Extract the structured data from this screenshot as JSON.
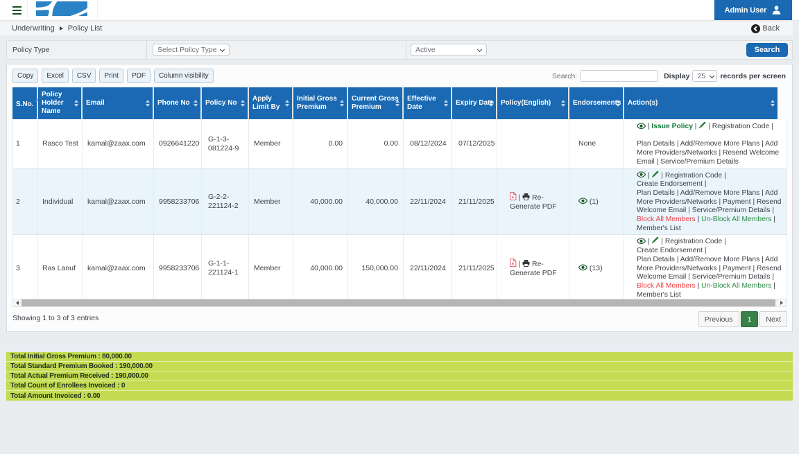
{
  "navbar": {
    "user_label": "Admin User"
  },
  "breadcrumb": {
    "section": "Underwriting",
    "page": "Policy List",
    "back_label": "Back"
  },
  "filter": {
    "policy_type_label": "Policy Type",
    "policy_type_value": "Select Policy Type",
    "status_value": "Active",
    "search_button_label": "Search"
  },
  "toolbar": {
    "buttons": [
      "Copy",
      "Excel",
      "CSV",
      "Print",
      "PDF",
      "Column visibility"
    ],
    "search_label": "Search:",
    "search_value": "",
    "display_label": "Display",
    "page_size": "25",
    "records_label": "records per screen"
  },
  "table": {
    "columns": [
      "S.No.",
      "Policy Holder Name",
      "Email",
      "Phone No",
      "Policy No",
      "Apply Limit By",
      "Initial Gross Premium",
      "Current Gross Premium",
      "Effective Date",
      "Expiry Date",
      "Policy(English)",
      "Endorsements",
      "Action(s)"
    ],
    "sorted_column": "S.No.",
    "sort_direction": "asc",
    "rows": [
      {
        "sno": "1",
        "holder": "Rasco Test",
        "email": "kamal@zaax.com",
        "phone": "0926641220",
        "policy_no": "G-1-3-081224-9",
        "apply_limit": "Member",
        "initial_gross": "0.00",
        "current_gross": "0.00",
        "effective": "08/12/2024",
        "expiry": "07/12/2025",
        "policy_english": [],
        "endorsements": [
          {
            "type": "text",
            "text": "None"
          }
        ],
        "actions": [
          {
            "type": "icon",
            "name": "eye-icon"
          },
          {
            "type": "sep"
          },
          {
            "type": "link",
            "text": "Issue Policy",
            "style": "green-bold"
          },
          {
            "type": "sep"
          },
          {
            "type": "icon",
            "name": "pencil-icon"
          },
          {
            "type": "sep"
          },
          {
            "type": "link",
            "text": "Registration Code"
          },
          {
            "type": "sep"
          },
          {
            "type": "br"
          },
          {
            "type": "br"
          },
          {
            "type": "link",
            "text": "Plan Details"
          },
          {
            "type": "sep"
          },
          {
            "type": "link",
            "text": "Add/Remove More Plans"
          },
          {
            "type": "sep"
          },
          {
            "type": "link",
            "text": "Add More Providers/Networks"
          },
          {
            "type": "sep"
          },
          {
            "type": "link",
            "text": "Resend Welcome Email"
          },
          {
            "type": "sep"
          },
          {
            "type": "link",
            "text": "Service/Premium Details"
          }
        ]
      },
      {
        "sno": "2",
        "holder": "Individual",
        "email": "kamal@zaax.com",
        "phone": "9958233706",
        "policy_no": "G-2-2-221124-2",
        "apply_limit": "Member",
        "initial_gross": "40,000.00",
        "current_gross": "40,000.00",
        "effective": "22/11/2024",
        "expiry": "21/11/2025",
        "policy_english": [
          {
            "type": "icon",
            "name": "pdf-icon"
          },
          {
            "type": "sep"
          },
          {
            "type": "icon",
            "name": "printer-icon"
          },
          {
            "type": "text",
            "text": " "
          },
          {
            "type": "link",
            "text": "Re-Generate PDF"
          }
        ],
        "endorsements": [
          {
            "type": "icon",
            "name": "eye-icon"
          },
          {
            "type": "text",
            "text": " (1)"
          }
        ],
        "actions": [
          {
            "type": "icon",
            "name": "eye-icon"
          },
          {
            "type": "sep"
          },
          {
            "type": "icon",
            "name": "pencil-icon"
          },
          {
            "type": "sep"
          },
          {
            "type": "link",
            "text": "Registration Code"
          },
          {
            "type": "sep"
          },
          {
            "type": "br"
          },
          {
            "type": "link",
            "text": "Create Endorsement"
          },
          {
            "type": "sep"
          },
          {
            "type": "br"
          },
          {
            "type": "link",
            "text": "Plan Details"
          },
          {
            "type": "sep"
          },
          {
            "type": "link",
            "text": "Add/Remove More Plans"
          },
          {
            "type": "sep"
          },
          {
            "type": "link",
            "text": "Add More Providers/Networks"
          },
          {
            "type": "sep"
          },
          {
            "type": "link",
            "text": "Payment"
          },
          {
            "type": "sep"
          },
          {
            "type": "link",
            "text": "Resend Welcome Email"
          },
          {
            "type": "sep"
          },
          {
            "type": "link",
            "text": "Service/Premium Details"
          },
          {
            "type": "sep"
          },
          {
            "type": "link",
            "text": "Block All Members",
            "style": "red"
          },
          {
            "type": "sep"
          },
          {
            "type": "link",
            "text": "Un-Block All Members",
            "style": "green"
          },
          {
            "type": "sep"
          },
          {
            "type": "link",
            "text": "Member's List"
          }
        ]
      },
      {
        "sno": "3",
        "holder": "Ras Lanuf",
        "email": "kamal@zaax.com",
        "phone": "9958233706",
        "policy_no": "G-1-1-221124-1",
        "apply_limit": "Member",
        "initial_gross": "40,000.00",
        "current_gross": "150,000.00",
        "effective": "22/11/2024",
        "expiry": "21/11/2025",
        "policy_english": [
          {
            "type": "icon",
            "name": "pdf-icon"
          },
          {
            "type": "sep"
          },
          {
            "type": "icon",
            "name": "printer-icon"
          },
          {
            "type": "text",
            "text": " "
          },
          {
            "type": "link",
            "text": "Re-Generate PDF"
          }
        ],
        "endorsements": [
          {
            "type": "icon",
            "name": "eye-icon"
          },
          {
            "type": "text",
            "text": " (13)"
          }
        ],
        "actions": [
          {
            "type": "icon",
            "name": "eye-icon"
          },
          {
            "type": "sep"
          },
          {
            "type": "icon",
            "name": "pencil-icon"
          },
          {
            "type": "sep"
          },
          {
            "type": "link",
            "text": "Registration Code"
          },
          {
            "type": "sep"
          },
          {
            "type": "br"
          },
          {
            "type": "link",
            "text": "Create Endorsement"
          },
          {
            "type": "sep"
          },
          {
            "type": "br"
          },
          {
            "type": "link",
            "text": "Plan Details"
          },
          {
            "type": "sep"
          },
          {
            "type": "link",
            "text": "Add/Remove More Plans"
          },
          {
            "type": "sep"
          },
          {
            "type": "link",
            "text": "Add More Providers/Networks"
          },
          {
            "type": "sep"
          },
          {
            "type": "link",
            "text": "Payment"
          },
          {
            "type": "sep"
          },
          {
            "type": "link",
            "text": "Resend Welcome Email"
          },
          {
            "type": "sep"
          },
          {
            "type": "link",
            "text": "Service/Premium Details"
          },
          {
            "type": "sep"
          },
          {
            "type": "link",
            "text": "Block All Members",
            "style": "red"
          },
          {
            "type": "sep"
          },
          {
            "type": "link",
            "text": "Un-Block All Members",
            "style": "green"
          },
          {
            "type": "sep"
          },
          {
            "type": "link",
            "text": "Member's List"
          }
        ]
      }
    ]
  },
  "footer": {
    "info": "Showing 1 to 3 of 3 entries",
    "previous_label": "Previous",
    "current_page": "1",
    "next_label": "Next"
  },
  "summary": {
    "rows": [
      {
        "label": "Total Initial Gross Premium",
        "value": "80,000.00"
      },
      {
        "label": "Total Standard Premium Booked",
        "value": "190,000.00"
      },
      {
        "label": "Total Actual Premium Received",
        "value": "190,000.00"
      },
      {
        "label": "Total Count of Enrollees Invoiced",
        "value": "0"
      },
      {
        "label": "Total Amount Invoiced",
        "value": "0.00"
      }
    ]
  },
  "colors": {
    "accent_blue": "#1a69b2",
    "logo_blue": "#2b82c4",
    "stripe_row": "#e9f4fb",
    "summary_green": "#c5dc52",
    "pagination_active_green": "#3a8149",
    "link_red": "#f04349",
    "link_green": "#2f8b46",
    "icon_dark_green": "#1c5b2f"
  }
}
